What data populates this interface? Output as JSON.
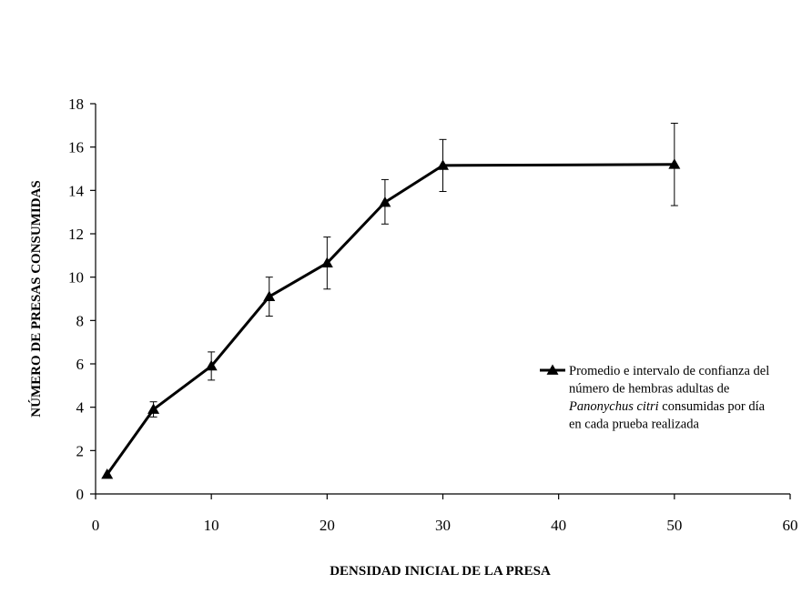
{
  "chart_data": {
    "type": "line",
    "x": [
      1,
      5,
      10,
      15,
      20,
      25,
      30,
      50
    ],
    "series": [
      {
        "values": [
          0.9,
          3.9,
          5.9,
          9.1,
          10.65,
          13.45,
          15.15,
          15.2
        ],
        "error_low": [
          0.9,
          3.55,
          5.25,
          8.2,
          9.45,
          12.45,
          13.95,
          13.3
        ],
        "error_high": [
          0.9,
          4.25,
          6.55,
          10.0,
          11.85,
          14.5,
          16.35,
          17.1
        ],
        "marker": "triangle",
        "color": "#000000"
      }
    ],
    "xlabel": "DENSIDAD INICIAL DE LA PRESA",
    "ylabel": "NÚMERO DE PRESAS CONSUMIDAS",
    "xlim": [
      0,
      60
    ],
    "ylim": [
      0,
      18
    ],
    "xticks": [
      "0",
      "10",
      "20",
      "30",
      "40",
      "50",
      "60"
    ],
    "yticks": [
      "0",
      "2",
      "4",
      "6",
      "8",
      "10",
      "12",
      "14",
      "16",
      "18"
    ],
    "grid": false,
    "legend": {
      "placement": "right",
      "lines": [
        [
          {
            "text": "Promedio e intervalo de confianza del",
            "italic": false
          }
        ],
        [
          {
            "text": "número de hembras adultas de",
            "italic": false
          }
        ],
        [
          {
            "text": "Panonychus citri",
            "italic": true
          },
          {
            "text": " consumidas por día",
            "italic": false
          }
        ],
        [
          {
            "text": "en cada prueba realizada",
            "italic": false
          }
        ]
      ]
    }
  }
}
